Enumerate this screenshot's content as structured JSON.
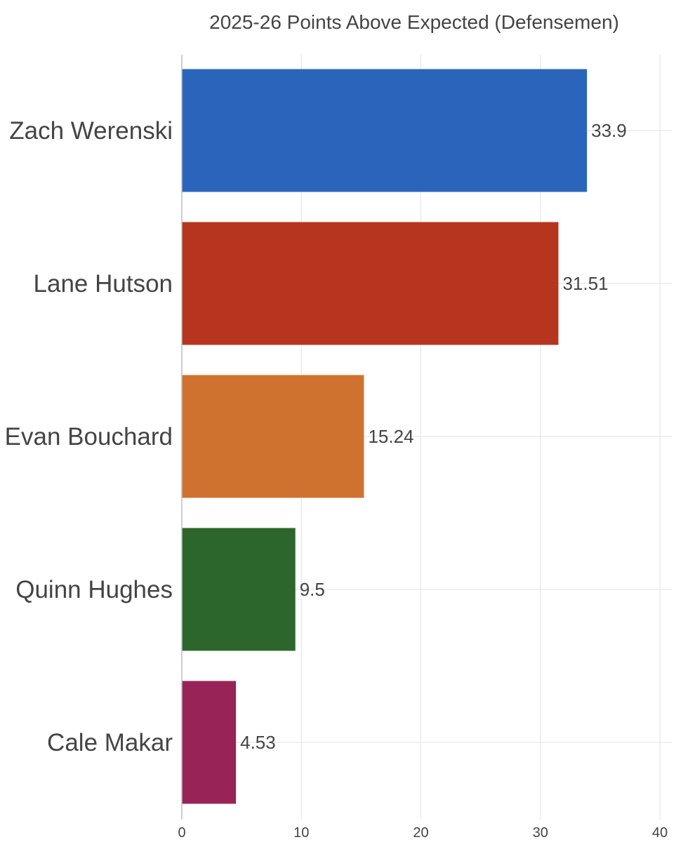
{
  "chart_data": {
    "type": "bar",
    "orientation": "horizontal",
    "title": "2025-26 Points Above Expected (Defensemen)",
    "xlabel": "",
    "ylabel": "",
    "categories": [
      "Zach Werenski",
      "Lane Hutson",
      "Evan Bouchard",
      "Quinn Hughes",
      "Cale Makar"
    ],
    "values": [
      33.9,
      31.51,
      15.24,
      9.5,
      4.53
    ],
    "value_labels": [
      "33.9",
      "31.51",
      "15.24",
      "9.5",
      "4.53"
    ],
    "colors": [
      "#2b65bb",
      "#b7341f",
      "#d0722f",
      "#2d662d",
      "#982356"
    ],
    "xlim": [
      0,
      41
    ],
    "x_ticks": [
      0,
      10,
      20,
      30,
      40
    ],
    "x_tick_labels": [
      "0",
      "10",
      "20",
      "30",
      "40"
    ],
    "grid": true,
    "legend": "none"
  }
}
